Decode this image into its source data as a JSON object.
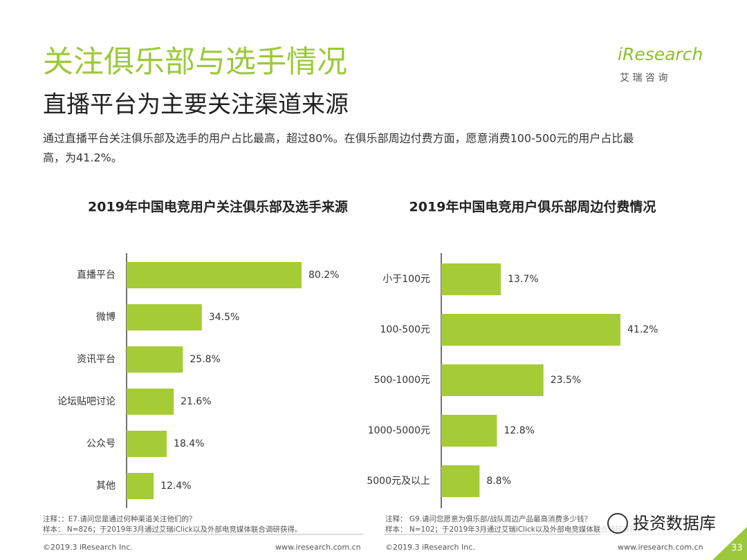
{
  "header": {
    "title": "关注俱乐部与选手情况",
    "subtitle": "直播平台为主要关注渠道来源",
    "description": [
      "通过直播平台关注俱乐部及选手的用户占比最高，超过80%。在俱乐部周边付费方面，愿意消费100-500元的用户占比最",
      "高，为41.2%。"
    ],
    "logo": "iResearch",
    "logo_cn": "艾 瑞 咨 询"
  },
  "chart_data": [
    {
      "type": "bar",
      "orientation": "horizontal",
      "title": "2019年中国电竞用户关注俱乐部及选手来源",
      "categories": [
        "直播平台",
        "微博",
        "资讯平台",
        "论坛贴吧讨论",
        "公众号",
        "其他"
      ],
      "values": [
        80.2,
        34.5,
        25.8,
        21.6,
        18.4,
        12.4
      ],
      "value_labels": [
        "80.2%",
        "34.5%",
        "25.8%",
        "21.6%",
        "18.4%",
        "12.4%"
      ],
      "color": "#a5cc37"
    },
    {
      "type": "bar",
      "orientation": "horizontal",
      "title": "2019年中国电竞用户俱乐部周边付费情况",
      "categories": [
        "小于100元",
        "100-500元",
        "500-1000元",
        "1000-5000元",
        "5000元及以上"
      ],
      "values": [
        13.7,
        41.2,
        23.5,
        12.8,
        8.8
      ],
      "value_labels": [
        "13.7%",
        "41.2%",
        "23.5%",
        "12.8%",
        "8.8%"
      ],
      "color": "#a5cc37"
    }
  ],
  "notes": [
    [
      "注释：：E7.请问您是通过何种渠道关注他们的？",
      "样本： N=826；于2019年3月通过艾瑞iClick以及外部电竞媒体联合调研获得。"
    ],
    [
      "注释： G9.请问您愿意为俱乐部/战队周边产品最高消费多少钱？",
      "样本： N=102；于2019年3月通过艾瑞iClick以及外部电竞媒体联合调研获得。"
    ]
  ],
  "footer": {
    "copyright": "©2019.3 iResearch Inc.",
    "url": "www.iresearch.com.cn",
    "page": "33",
    "watermark": "投资数据库"
  }
}
